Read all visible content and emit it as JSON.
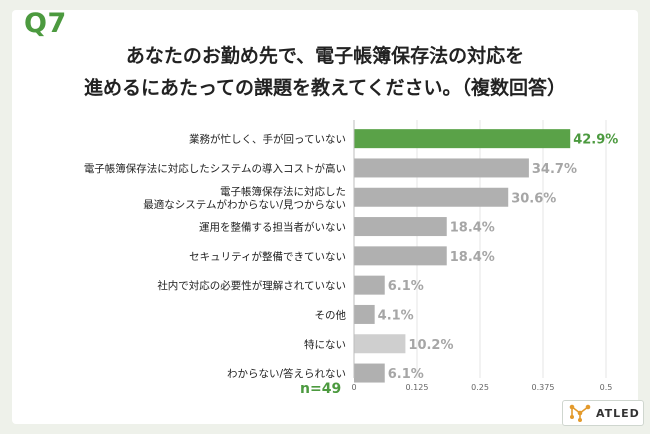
{
  "question_number": "Q7",
  "title_lines": [
    "あなたのお勤め先で、電子帳簿保存法の対応を",
    "進めるにあたっての課題を教えてください。（複数回答）"
  ],
  "sample_size": "n=49",
  "brand": "ATLED",
  "colors": {
    "highlight": "#5aa248",
    "bar": "#b0b0b0",
    "bar_light": "#cfcfcf",
    "value_highlight": "#4c9a3f",
    "value": "#a6a6a6"
  },
  "chart_data": {
    "type": "bar",
    "orientation": "horizontal",
    "categories": [
      [
        "業務が忙しく、手が回っていない"
      ],
      [
        "電子帳簿保存法に対応したシステムの導入コストが高い"
      ],
      [
        "電子帳簿保存法に対応した",
        "最適なシステムがわからない/見つからない"
      ],
      [
        "運用を整備する担当者がいない"
      ],
      [
        "セキュリティが整備できていない"
      ],
      [
        "社内で対応の必要性が理解されていない"
      ],
      [
        "その他"
      ],
      [
        "特にない"
      ],
      [
        "わからない/答えられない"
      ]
    ],
    "values": [
      0.429,
      0.347,
      0.306,
      0.184,
      0.184,
      0.061,
      0.041,
      0.102,
      0.061
    ],
    "value_labels": [
      "42.9%",
      "34.7%",
      "30.6%",
      "18.4%",
      "18.4%",
      "6.1%",
      "4.1%",
      "10.2%",
      "6.1%"
    ],
    "highlight_index": 0,
    "light_indices": [
      7
    ],
    "xlim": [
      0,
      0.5
    ],
    "xticks": [
      0,
      0.125,
      0.25,
      0.375,
      0.5
    ],
    "xtick_labels": [
      "0",
      "0.125",
      "0.25",
      "0.375",
      "0.5"
    ],
    "grid": true
  }
}
